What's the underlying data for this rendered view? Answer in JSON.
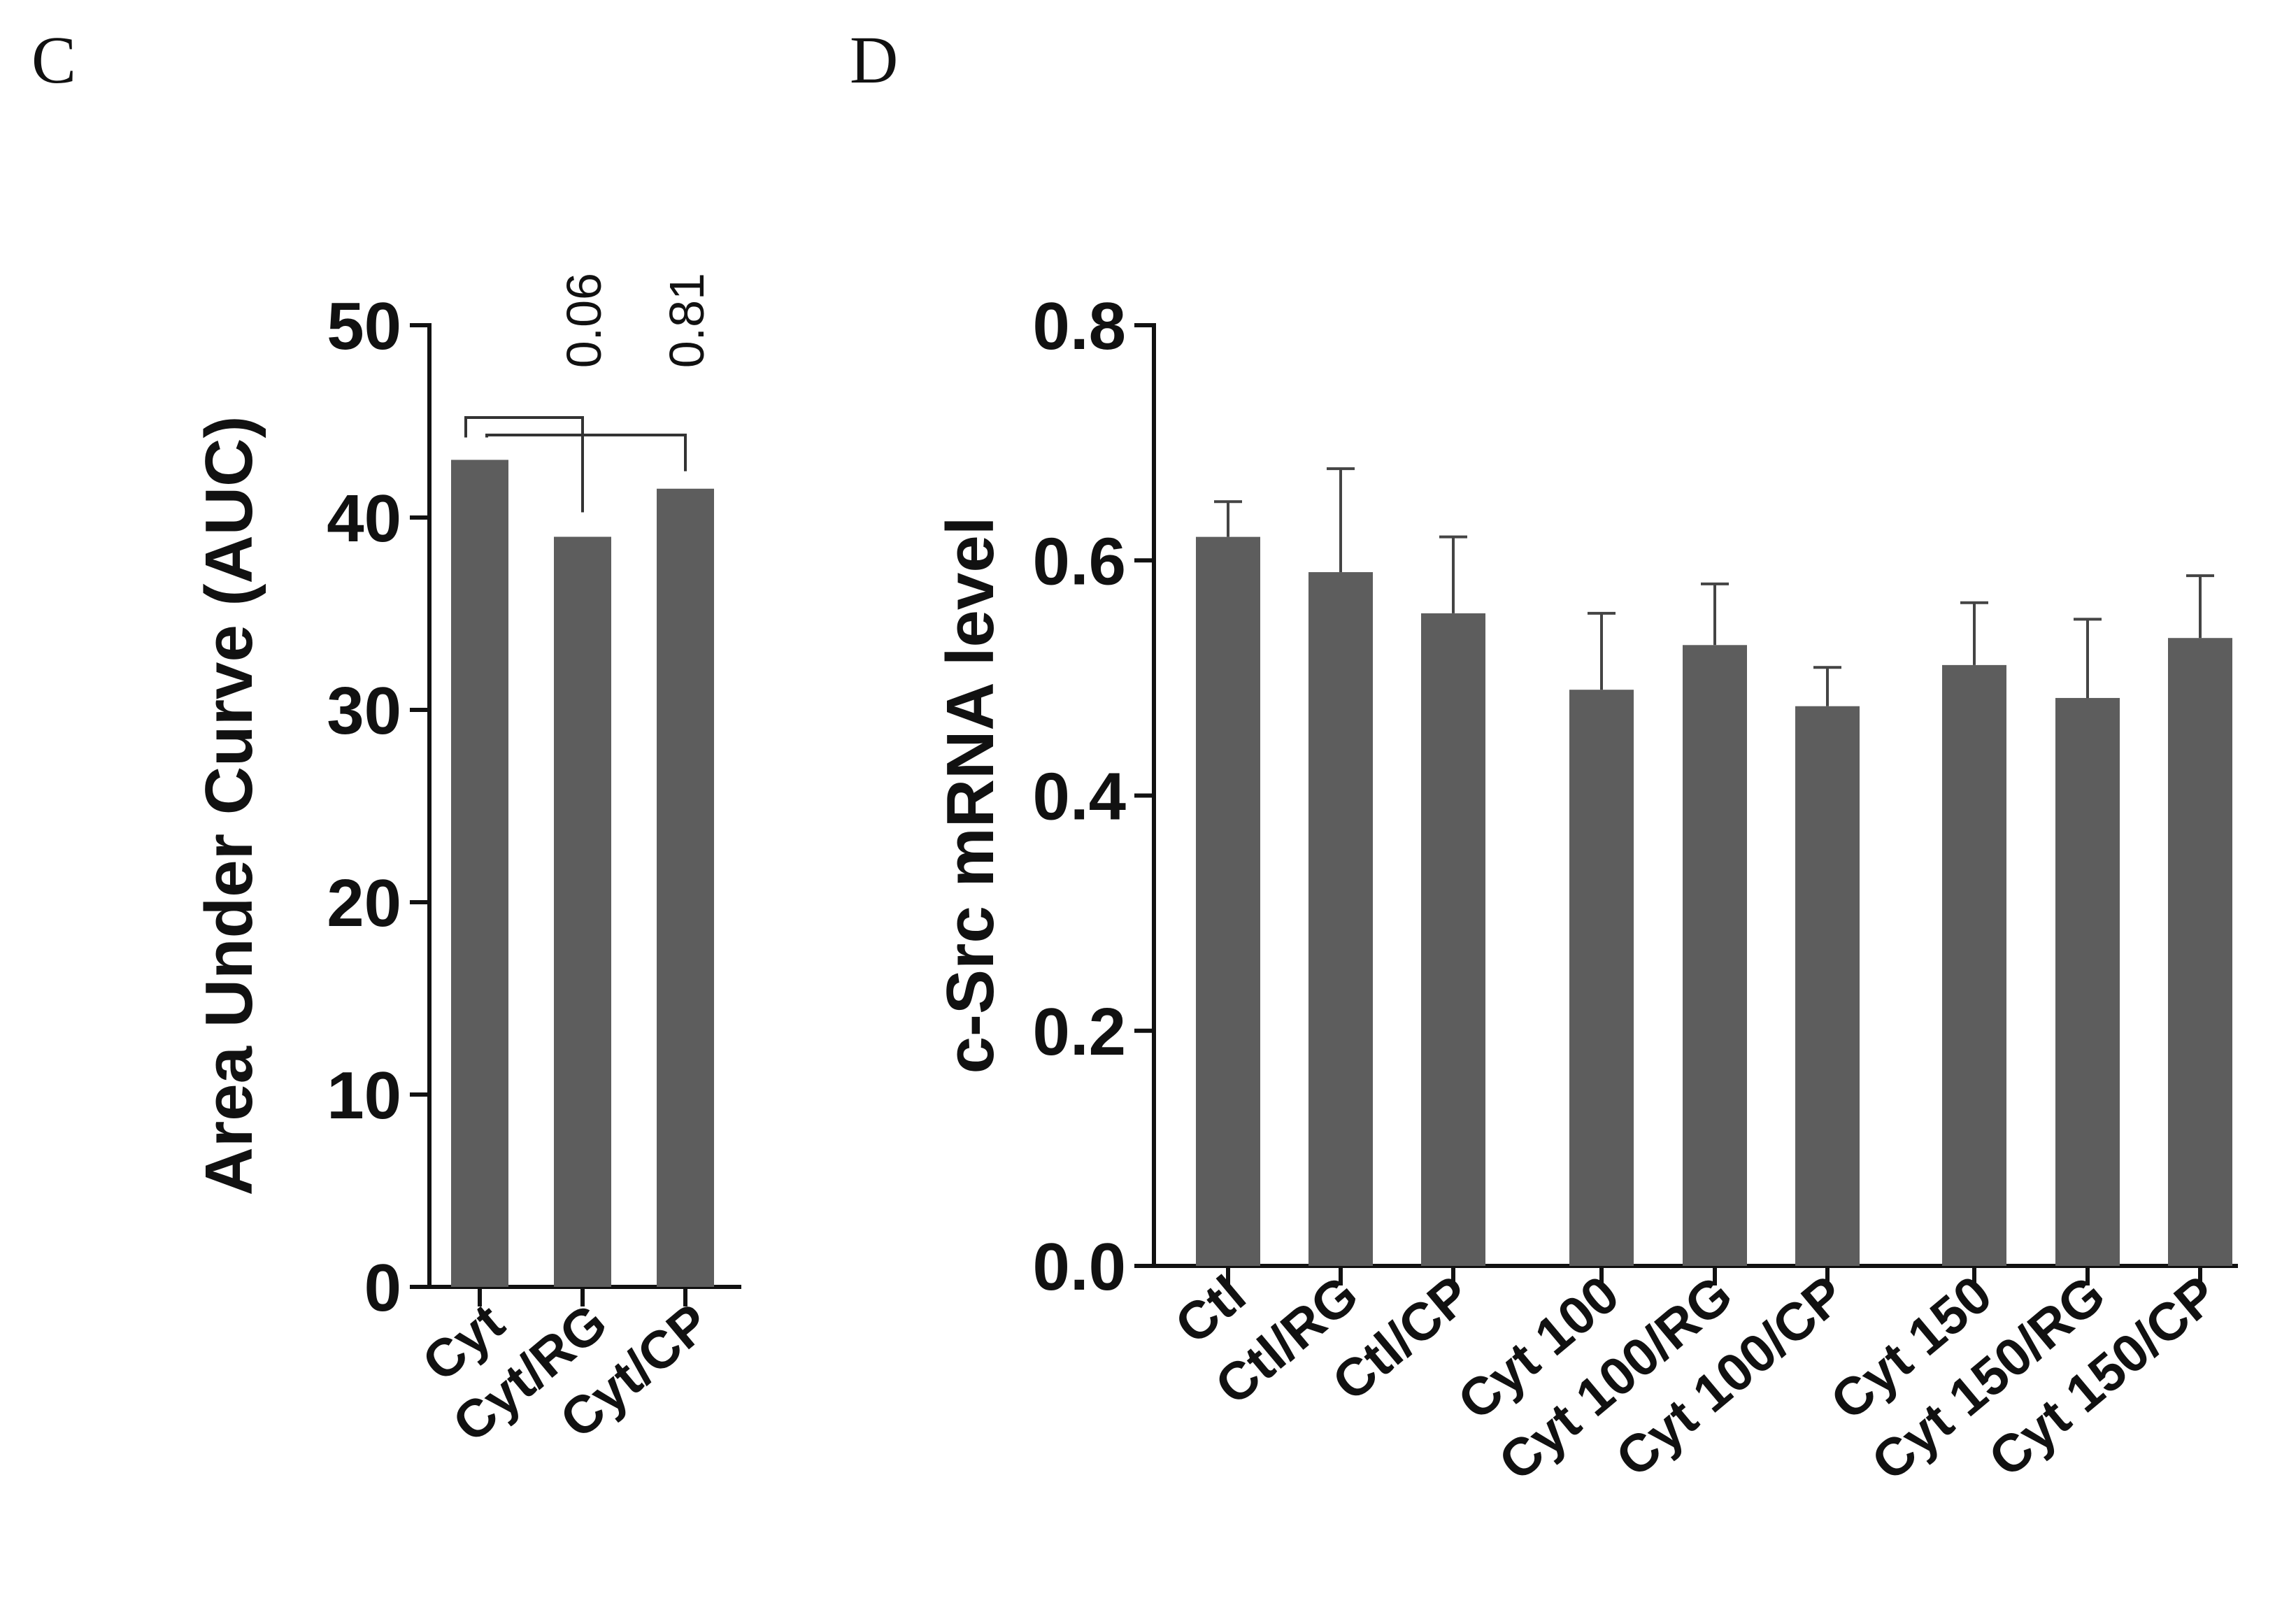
{
  "panels": {
    "c": {
      "letter": "C"
    },
    "d": {
      "letter": "D"
    }
  },
  "chart_data": [
    {
      "id": "panel-c",
      "type": "bar",
      "ylabel": "Area Under Curve (AUC)",
      "xlabel": "",
      "ylim": [
        0,
        50
      ],
      "yticks": [
        0,
        10,
        20,
        30,
        40,
        50
      ],
      "ytick_labels": [
        "0",
        "10",
        "20",
        "30",
        "40",
        "50"
      ],
      "categories": [
        "Cyt",
        "Cyt/RG",
        "Cyt/CP"
      ],
      "values": [
        43,
        39,
        41.5
      ],
      "comparisons": [
        {
          "from": "Cyt",
          "to": "Cyt/RG",
          "label": "0.06"
        },
        {
          "from": "Cyt",
          "to": "Cyt/CP",
          "label": "0.81"
        }
      ],
      "bar_color": "#5d5d5d"
    },
    {
      "id": "panel-d",
      "type": "bar",
      "ylabel": "c-Src mRNA level",
      "xlabel": "",
      "ylim": [
        0,
        0.8
      ],
      "yticks": [
        0,
        0.2,
        0.4,
        0.6,
        0.8
      ],
      "ytick_labels": [
        "0.0",
        "0.2",
        "0.4",
        "0.6",
        "0.8"
      ],
      "categories": [
        "Ctl",
        "Ctl/RG",
        "Ctl/CP",
        "Cyt 100",
        "Cyt 100/RG",
        "Cyt 100/CP",
        "Cyt 150",
        "Cyt 150/RG",
        "Cyt 150/CP"
      ],
      "groups": [
        [
          0,
          1,
          2
        ],
        [
          3,
          4,
          5
        ],
        [
          6,
          7,
          8
        ]
      ],
      "values": [
        0.62,
        0.59,
        0.555,
        0.49,
        0.528,
        0.476,
        0.511,
        0.483,
        0.534
      ],
      "errors": [
        0.03,
        0.088,
        0.065,
        0.065,
        0.052,
        0.033,
        0.053,
        0.067,
        0.053
      ],
      "bar_color": "#5d5d5d"
    }
  ]
}
